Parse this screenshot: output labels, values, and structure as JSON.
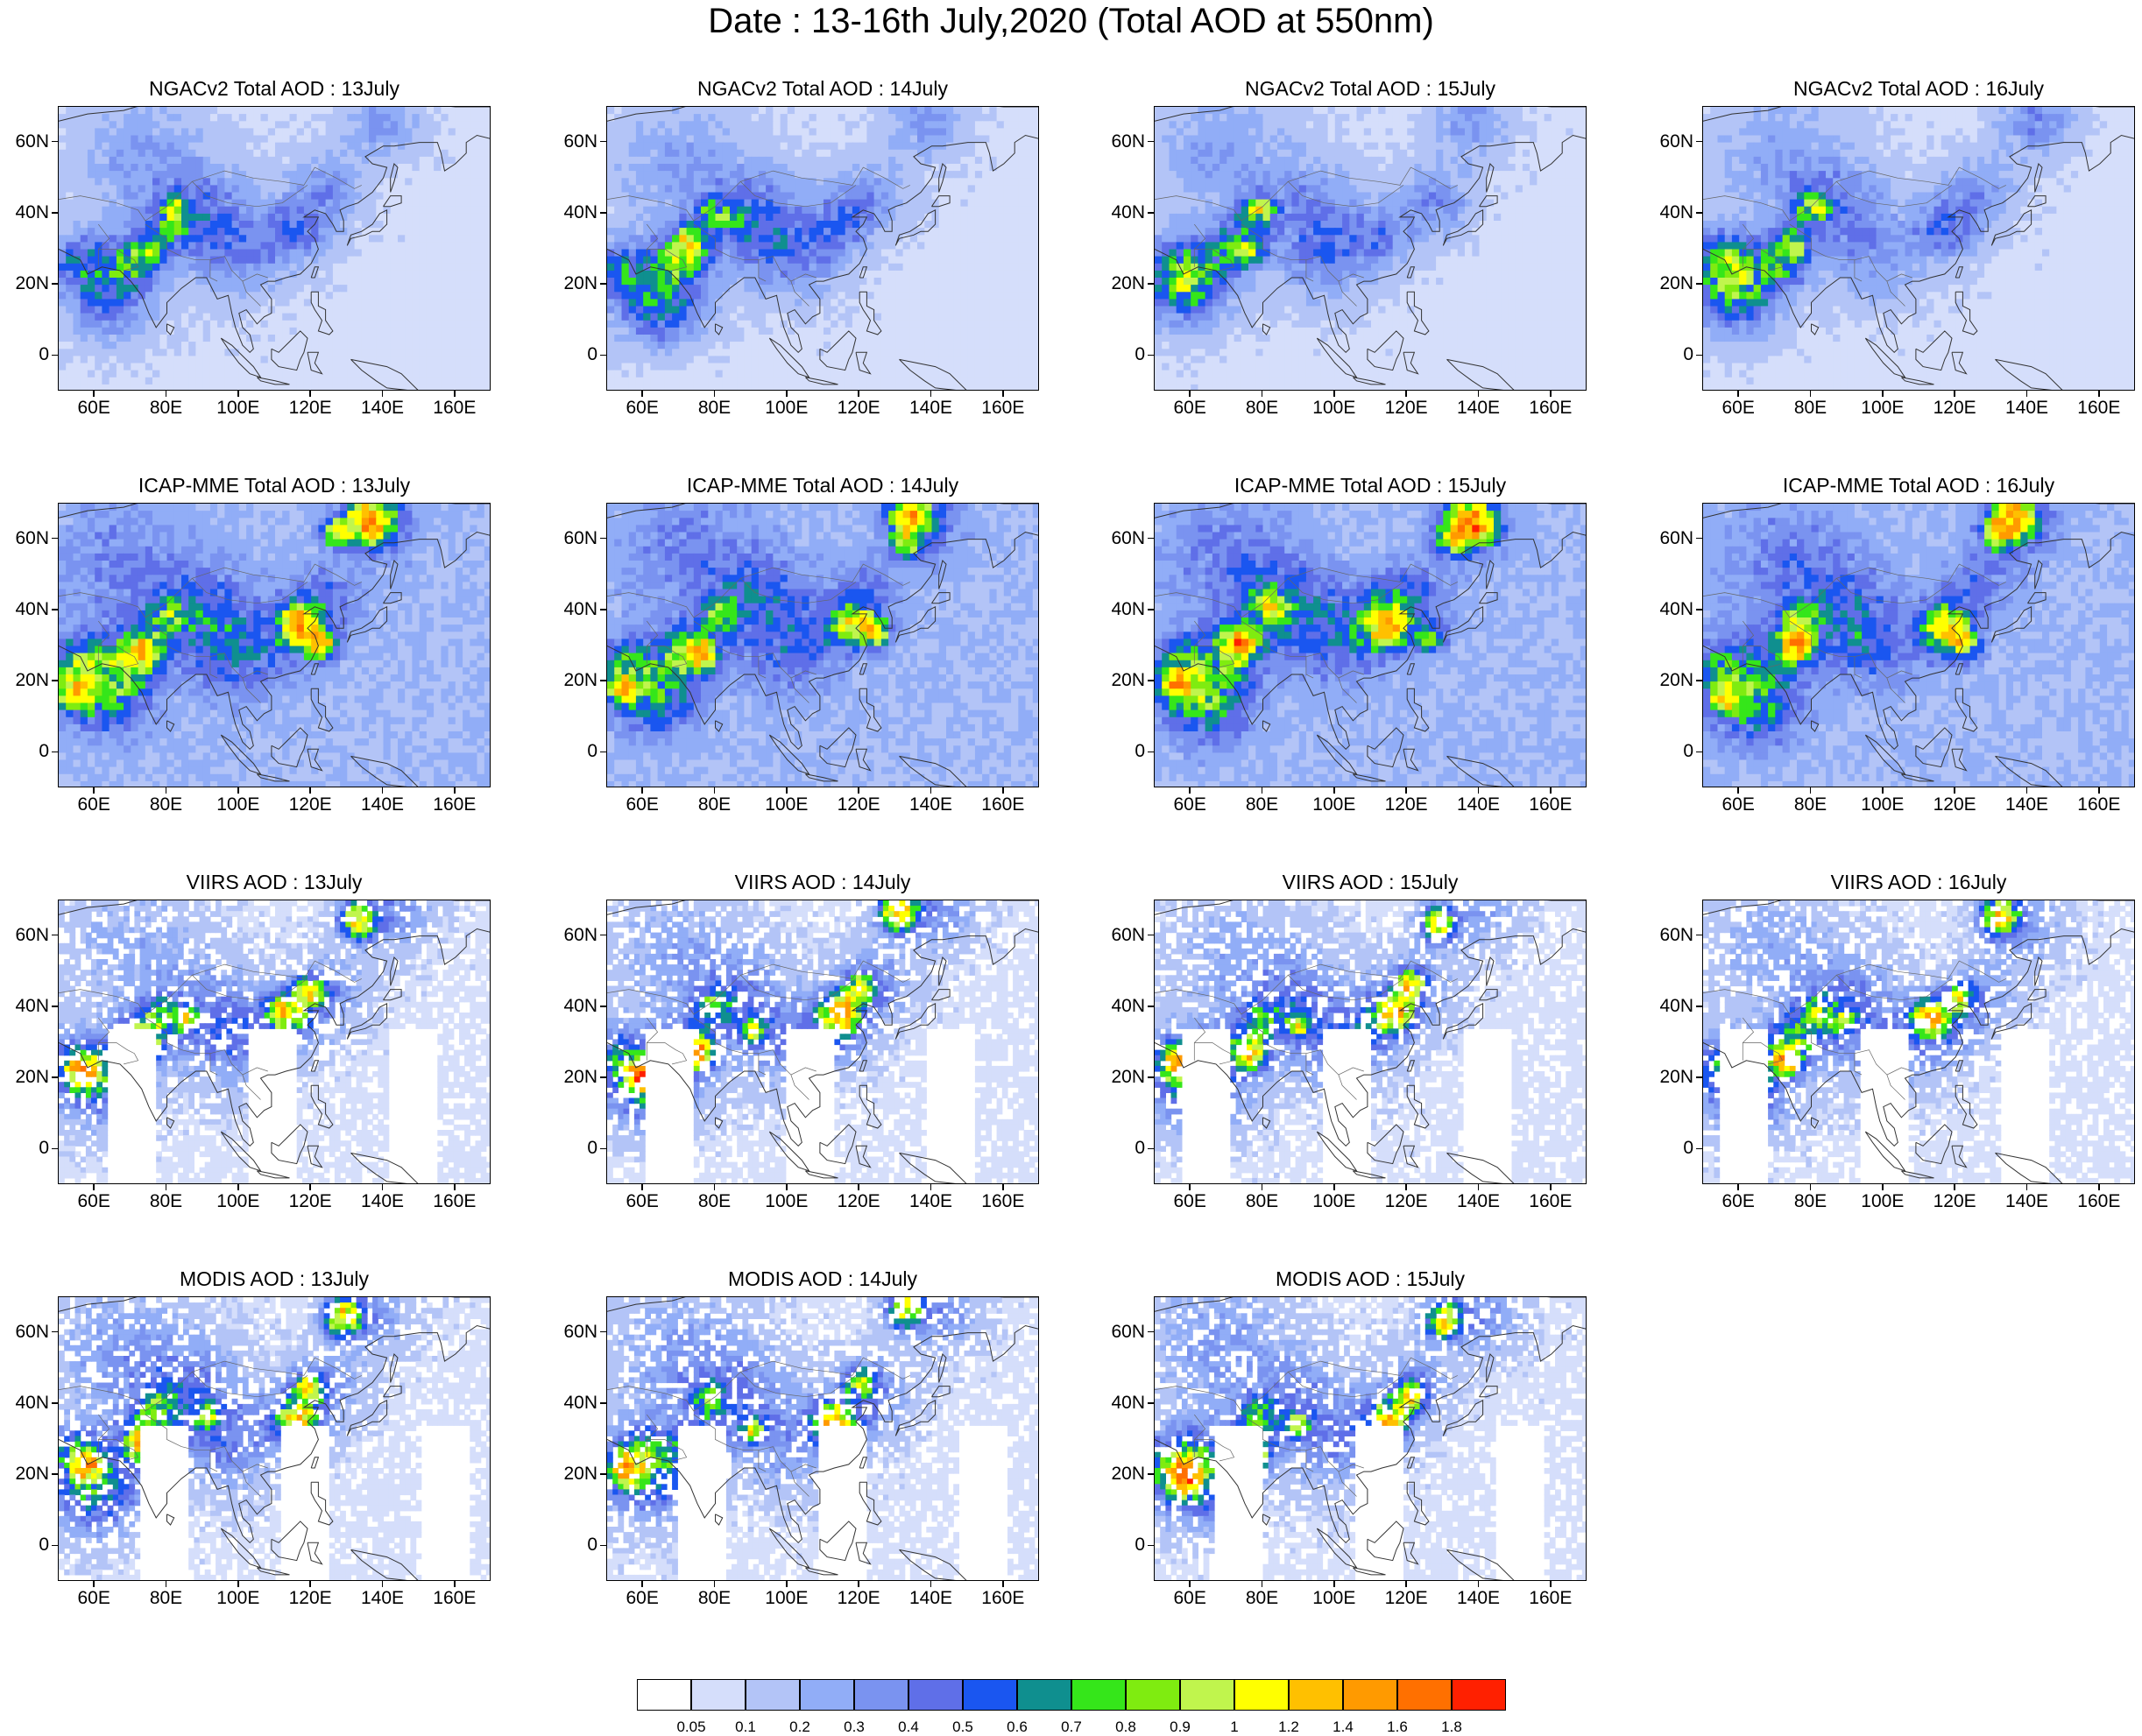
{
  "title": "Date : 13-16th July,2020 (Total AOD at 550nm)",
  "axes": {
    "y_labels": [
      "60N",
      "40N",
      "20N",
      "0"
    ],
    "y_values": [
      60,
      40,
      20,
      0
    ],
    "x_labels": [
      "60E",
      "80E",
      "100E",
      "120E",
      "140E",
      "160E"
    ],
    "x_values": [
      60,
      80,
      100,
      120,
      140,
      160
    ],
    "lat_range": [
      -10,
      70
    ],
    "lon_range": [
      50,
      170
    ]
  },
  "panels": [
    {
      "title": "NGACv2 Total AOD : 13July",
      "product": "model",
      "seed": 11
    },
    {
      "title": "NGACv2 Total AOD : 14July",
      "product": "model",
      "seed": 12
    },
    {
      "title": "NGACv2 Total AOD : 15July",
      "product": "model",
      "seed": 13
    },
    {
      "title": "NGACv2 Total AOD : 16July",
      "product": "model",
      "seed": 14
    },
    {
      "title": "ICAP-MME Total AOD : 13July",
      "product": "ensemble",
      "seed": 21
    },
    {
      "title": "ICAP-MME Total AOD : 14July",
      "product": "ensemble",
      "seed": 22
    },
    {
      "title": "ICAP-MME Total AOD : 15July",
      "product": "ensemble",
      "seed": 23
    },
    {
      "title": "ICAP-MME Total AOD : 16July",
      "product": "ensemble",
      "seed": 24
    },
    {
      "title": "VIIRS AOD : 13July",
      "product": "satellite",
      "seed": 31
    },
    {
      "title": "VIIRS AOD : 14July",
      "product": "satellite",
      "seed": 32
    },
    {
      "title": "VIIRS AOD : 15July",
      "product": "satellite",
      "seed": 33
    },
    {
      "title": "VIIRS AOD : 16July",
      "product": "satellite",
      "seed": 34
    },
    {
      "title": "MODIS AOD : 13July",
      "product": "satellite",
      "seed": 41
    },
    {
      "title": "MODIS AOD : 14July",
      "product": "satellite",
      "seed": 42
    },
    {
      "title": "MODIS AOD : 15July",
      "product": "satellite",
      "seed": 43
    }
  ],
  "colorbar": {
    "labels": [
      "0.05",
      "0.1",
      "0.2",
      "0.3",
      "0.4",
      "0.5",
      "0.6",
      "0.7",
      "0.8",
      "0.9",
      "1",
      "1.2",
      "1.4",
      "1.6",
      "1.8"
    ],
    "colors": [
      "#ffffff",
      "#d5defb",
      "#b3c4f7",
      "#91adf7",
      "#7a93f0",
      "#5f6fe8",
      "#1a56f0",
      "#0f8f8f",
      "#35e61a",
      "#7fec10",
      "#c0f54d",
      "#ffff00",
      "#ffc000",
      "#ff9a00",
      "#ff7000",
      "#ff2000"
    ]
  }
}
